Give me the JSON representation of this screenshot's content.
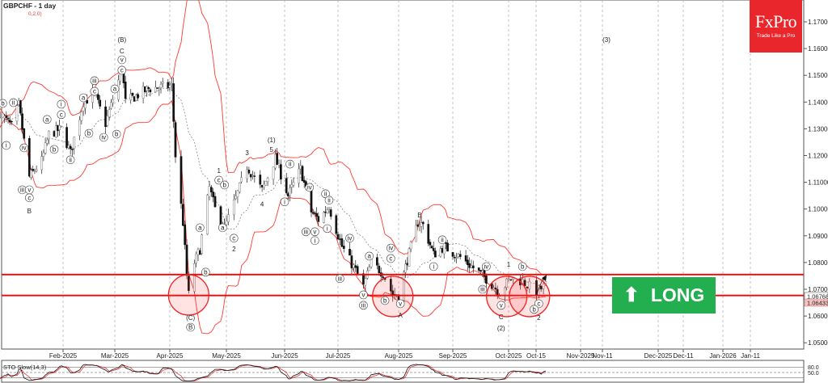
{
  "header": {
    "symbol_title": "GBPCHF - 1 day",
    "params": "0,2,0)"
  },
  "logo": {
    "brand": "FxPro",
    "tagline": "Trade Like a Pro"
  },
  "badge": {
    "label": "LONG",
    "icon": "arrow-up-icon",
    "color": "#23ae4f"
  },
  "price_axis": [
    "1.17000",
    "1.16000",
    "1.15000",
    "1.14000",
    "1.13000",
    "1.12000",
    "1.11000",
    "1.10000",
    "1.09000",
    "1.08000",
    "1.07000",
    "1.06000",
    "1.05000"
  ],
  "price_tags": {
    "line": "1.06768",
    "bid": "1.06433"
  },
  "date_axis": [
    "Feb-2025",
    "Mar-2025",
    "Apr-2025",
    "May-2025",
    "Jun-2025",
    "Jul-2025",
    "Aug-2025",
    "Sep-2025",
    "Oct-2025",
    "Oct-15",
    "Nov-2025",
    "Nov-11",
    "Dec-2025",
    "Dec-11",
    "Jan-2026",
    "Jan-11"
  ],
  "indicator": {
    "label": "STO Slow(14,3)",
    "levels": [
      "80.0",
      "50.0"
    ]
  },
  "colors": {
    "bands": "#ff3b30",
    "levels": "#ff0000",
    "circle_fill": "#ffdede",
    "accent_logo": "#e8262b"
  },
  "chart_data": {
    "type": "candlestick",
    "title": "GBPCHF - 1 day",
    "ylim": [
      1.045,
      1.177
    ],
    "xrange": [
      "2024-12-27",
      "2026-01-20"
    ],
    "grid": "vertical dashed at month starts",
    "close_path": [
      [
        "2024-12-27",
        1.136
      ],
      [
        "2025-01-03",
        1.131
      ],
      [
        "2025-01-07",
        1.139
      ],
      [
        "2025-01-13",
        1.112
      ],
      [
        "2025-01-20",
        1.118
      ],
      [
        "2025-01-24",
        1.128
      ],
      [
        "2025-01-31",
        1.13
      ],
      [
        "2025-02-05",
        1.121
      ],
      [
        "2025-02-12",
        1.14
      ],
      [
        "2025-02-18",
        1.143
      ],
      [
        "2025-02-24",
        1.132
      ],
      [
        "2025-03-03",
        1.148
      ],
      [
        "2025-03-05",
        1.153
      ],
      [
        "2025-03-07",
        1.14
      ],
      [
        "2025-03-20",
        1.145
      ],
      [
        "2025-04-02",
        1.146
      ],
      [
        "2025-04-04",
        1.12
      ],
      [
        "2025-04-08",
        1.095
      ],
      [
        "2025-04-10",
        1.075
      ],
      [
        "2025-04-11",
        1.068
      ],
      [
        "2025-04-14",
        1.08
      ],
      [
        "2025-04-17",
        1.085
      ],
      [
        "2025-04-22",
        1.108
      ],
      [
        "2025-04-25",
        1.1
      ],
      [
        "2025-04-30",
        1.093
      ],
      [
        "2025-05-06",
        1.104
      ],
      [
        "2025-05-12",
        1.116
      ],
      [
        "2025-05-20",
        1.107
      ],
      [
        "2025-05-27",
        1.119
      ],
      [
        "2025-06-03",
        1.105
      ],
      [
        "2025-06-10",
        1.115
      ],
      [
        "2025-06-16",
        1.099
      ],
      [
        "2025-06-20",
        1.096
      ],
      [
        "2025-06-26",
        1.101
      ],
      [
        "2025-07-03",
        1.086
      ],
      [
        "2025-07-10",
        1.077
      ],
      [
        "2025-07-14",
        1.071
      ],
      [
        "2025-07-18",
        1.08
      ],
      [
        "2025-07-24",
        1.076
      ],
      [
        "2025-07-29",
        1.068
      ],
      [
        "2025-08-01",
        1.068
      ],
      [
        "2025-08-06",
        1.081
      ],
      [
        "2025-08-12",
        1.095
      ],
      [
        "2025-08-15",
        1.094
      ],
      [
        "2025-08-21",
        1.083
      ],
      [
        "2025-08-27",
        1.086
      ],
      [
        "2025-09-05",
        1.082
      ],
      [
        "2025-09-12",
        1.078
      ],
      [
        "2025-09-19",
        1.074
      ],
      [
        "2025-09-26",
        1.069
      ],
      [
        "2025-10-02",
        1.074
      ],
      [
        "2025-10-07",
        1.073
      ],
      [
        "2025-10-13",
        1.069
      ],
      [
        "2025-10-17",
        1.0715
      ]
    ],
    "indicators": [
      "Bollinger Bands (20,2)",
      "STO Slow(14,3)"
    ],
    "horizontal_levels": [
      1.0755,
      1.06768
    ],
    "highlight_zones": [
      [
        "2025-04-11",
        1.0679
      ],
      [
        "2025-07-29",
        1.0673
      ],
      [
        "2025-09-30",
        1.0673
      ],
      [
        "2025-10-10",
        1.0673
      ]
    ],
    "projection_arrow": [
      "2025-10-16",
      1.0745
    ],
    "annotations": [
      {
        "t": "b",
        "d": "2024-12-29",
        "p": 1.1395,
        "c": true
      },
      {
        "t": "ii",
        "d": "2025-01-04",
        "p": 1.1398,
        "c": true
      },
      {
        "t": "i",
        "d": "2024-12-31",
        "p": 1.1238,
        "c": true
      },
      {
        "t": "iv",
        "d": "2025-01-10",
        "p": 1.1229,
        "c": true
      },
      {
        "t": "iii",
        "d": "2025-01-09",
        "p": 1.1072,
        "c": true
      },
      {
        "t": "v",
        "d": "2025-01-13",
        "p": 1.1072,
        "c": true
      },
      {
        "t": "c",
        "d": "2025-01-13",
        "p": 1.1042,
        "c": true
      },
      {
        "t": "B",
        "d": "2025-01-13",
        "p": 1.0996,
        "c": false
      },
      {
        "t": "a",
        "d": "2025-01-23",
        "p": 1.1335,
        "c": true
      },
      {
        "t": "b",
        "d": "2025-01-27",
        "p": 1.1223,
        "c": true
      },
      {
        "t": "i",
        "d": "2025-01-31",
        "p": 1.1392,
        "c": true
      },
      {
        "t": "c",
        "d": "2025-01-31",
        "p": 1.1353,
        "c": true
      },
      {
        "t": "ii",
        "d": "2025-02-05",
        "p": 1.1184,
        "c": true
      },
      {
        "t": "a",
        "d": "2025-02-12",
        "p": 1.1416,
        "c": true
      },
      {
        "t": "iii",
        "d": "2025-02-18",
        "p": 1.148,
        "c": true
      },
      {
        "t": "c",
        "d": "2025-02-18",
        "p": 1.144,
        "c": true
      },
      {
        "t": "b",
        "d": "2025-02-15",
        "p": 1.1283,
        "c": true
      },
      {
        "t": "iv",
        "d": "2025-02-23",
        "p": 1.1268,
        "c": true
      },
      {
        "t": "a",
        "d": "2025-03-01",
        "p": 1.1449,
        "c": true
      },
      {
        "t": "b",
        "d": "2025-03-02",
        "p": 1.128,
        "c": true
      },
      {
        "t": "(B)",
        "d": "2025-03-05",
        "p": 1.1637,
        "c": false
      },
      {
        "t": "C",
        "d": "2025-03-05",
        "p": 1.1594,
        "c": false
      },
      {
        "t": "v",
        "d": "2025-03-05",
        "p": 1.1558,
        "c": true
      },
      {
        "t": "c",
        "d": "2025-03-05",
        "p": 1.1519,
        "c": true
      },
      {
        "t": "(C)",
        "d": "2025-04-12",
        "p": 1.0598,
        "c": false
      },
      {
        "t": "B",
        "d": "2025-04-12",
        "p": 1.0558,
        "c": true
      },
      {
        "t": "a",
        "d": "2025-04-17",
        "p": 1.093,
        "c": true
      },
      {
        "t": "b",
        "d": "2025-04-20",
        "p": 1.0764,
        "c": true
      },
      {
        "t": "1",
        "d": "2025-04-27",
        "p": 1.1147,
        "c": false
      },
      {
        "t": "c",
        "d": "2025-04-27",
        "p": 1.1108,
        "c": true
      },
      {
        "t": "b",
        "d": "2025-04-30",
        "p": 1.109,
        "c": true
      },
      {
        "t": "a",
        "d": "2025-04-29",
        "p": 1.093,
        "c": true
      },
      {
        "t": "c",
        "d": "2025-05-05",
        "p": 1.0891,
        "c": true
      },
      {
        "t": "2",
        "d": "2025-05-05",
        "p": 1.0854,
        "c": false
      },
      {
        "t": "3",
        "d": "2025-05-12",
        "p": 1.1214,
        "c": false
      },
      {
        "t": "(1)",
        "d": "2025-05-25",
        "p": 1.1262,
        "c": false
      },
      {
        "t": "5",
        "d": "2025-05-25",
        "p": 1.1226,
        "c": false
      },
      {
        "t": "4",
        "d": "2025-05-20",
        "p": 1.1021,
        "c": false
      },
      {
        "t": "ii",
        "d": "2025-06-04",
        "p": 1.1168,
        "c": true
      },
      {
        "t": "i",
        "d": "2025-06-01",
        "p": 1.1027,
        "c": true
      },
      {
        "t": "iv",
        "d": "2025-06-15",
        "p": 1.1081,
        "c": true
      },
      {
        "t": "ii",
        "d": "2025-06-24",
        "p": 1.1057,
        "c": true
      },
      {
        "t": "ii",
        "d": "2025-06-26",
        "p": 1.1033,
        "c": true
      },
      {
        "t": "iii",
        "d": "2025-06-13",
        "p": 1.0915,
        "c": true
      },
      {
        "t": "v",
        "d": "2025-06-18",
        "p": 1.0915,
        "c": true
      },
      {
        "t": "i",
        "d": "2025-06-18",
        "p": 1.0882,
        "c": true
      },
      {
        "t": "i",
        "d": "2025-06-25",
        "p": 1.0927,
        "c": true
      },
      {
        "t": "iv",
        "d": "2025-07-07",
        "p": 1.0891,
        "c": true
      },
      {
        "t": "a",
        "d": "2025-07-17",
        "p": 1.0824,
        "c": true
      },
      {
        "t": "c",
        "d": "2025-07-28",
        "p": 1.0815,
        "c": true
      },
      {
        "t": "iv",
        "d": "2025-07-28",
        "p": 1.0854,
        "c": true
      },
      {
        "t": "iii",
        "d": "2025-07-02",
        "p": 1.074,
        "c": true
      },
      {
        "t": "v",
        "d": "2025-07-14",
        "p": 1.0679,
        "c": true
      },
      {
        "t": "iii",
        "d": "2025-07-14",
        "p": 1.064,
        "c": true
      },
      {
        "t": "b",
        "d": "2025-07-25",
        "p": 1.0658,
        "c": true
      },
      {
        "t": "v",
        "d": "2025-08-02",
        "p": 1.0646,
        "c": true
      },
      {
        "t": "A",
        "d": "2025-08-02",
        "p": 1.0607,
        "c": false
      },
      {
        "t": "B",
        "d": "2025-08-13",
        "p": 1.0981,
        "c": false
      },
      {
        "t": "ii",
        "d": "2025-08-26",
        "p": 1.0885,
        "c": true
      },
      {
        "t": "i",
        "d": "2025-08-21",
        "p": 1.0785,
        "c": true
      },
      {
        "t": "iv",
        "d": "2025-09-19",
        "p": 1.0785,
        "c": true
      },
      {
        "t": "iii",
        "d": "2025-09-17",
        "p": 1.07,
        "c": true
      },
      {
        "t": "v",
        "d": "2025-09-27",
        "p": 1.064,
        "c": true
      },
      {
        "t": "C",
        "d": "2025-09-27",
        "p": 1.0601,
        "c": false
      },
      {
        "t": "(2)",
        "d": "2025-09-27",
        "p": 1.0558,
        "c": false
      },
      {
        "t": "1",
        "d": "2025-10-01",
        "p": 1.0797,
        "c": false
      },
      {
        "t": "b",
        "d": "2025-10-07",
        "p": 1.0785,
        "c": true
      },
      {
        "t": "c",
        "d": "2025-10-14",
        "p": 1.0646,
        "c": true
      },
      {
        "t": "b",
        "d": "2025-10-12",
        "p": 1.0625,
        "c": true
      },
      {
        "t": "2",
        "d": "2025-10-14",
        "p": 1.0598,
        "c": false
      },
      {
        "t": "(3)",
        "d": "2025-11-11",
        "p": 1.1637,
        "c": false
      }
    ]
  }
}
